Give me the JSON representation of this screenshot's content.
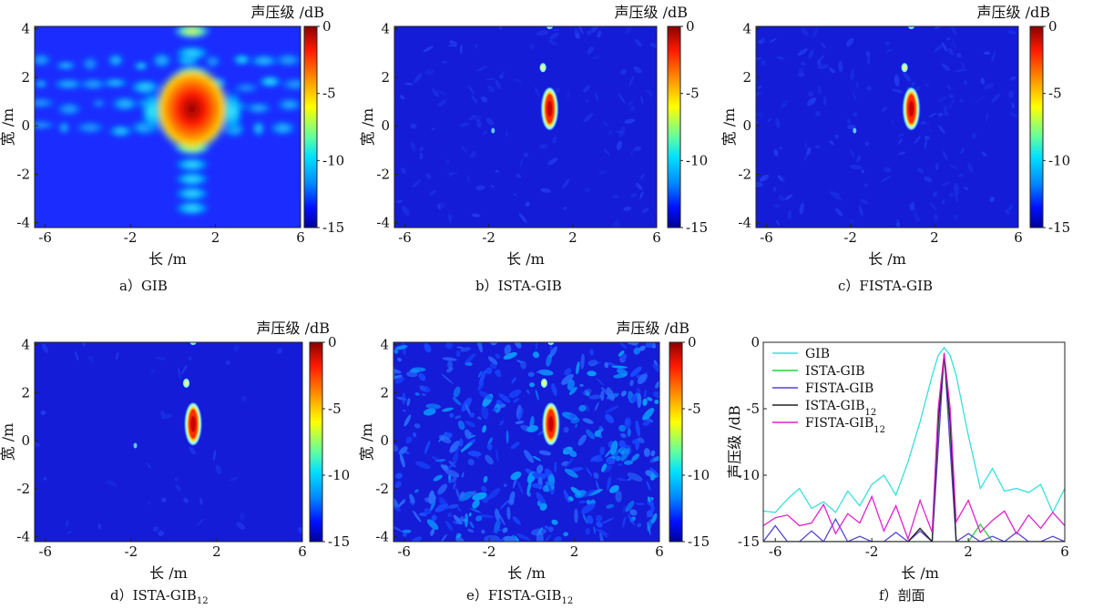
{
  "figure": {
    "colorbar_title": "声压级 /dB",
    "colorbar_ticks": [
      "0",
      "-5",
      "-10",
      "-15"
    ],
    "x_axis_label": "长 /m",
    "y_axis_label": "宽 /m",
    "x_ticks": [
      "-6",
      "-2",
      "2",
      "6"
    ],
    "y_ticks": [
      "4",
      "2",
      "0",
      "-2",
      "-4"
    ]
  },
  "panels": [
    {
      "id": "a",
      "caption_prefix": "a）",
      "caption_main": "GIB",
      "caption_sub": ""
    },
    {
      "id": "b",
      "caption_prefix": "b）",
      "caption_main": "ISTA-GIB",
      "caption_sub": ""
    },
    {
      "id": "c",
      "caption_prefix": "c）",
      "caption_main": "FISTA-GIB",
      "caption_sub": ""
    },
    {
      "id": "d",
      "caption_prefix": "d）",
      "caption_main": "ISTA-GIB",
      "caption_sub": "12"
    },
    {
      "id": "e",
      "caption_prefix": "e）",
      "caption_main": "FISTA-GIB",
      "caption_sub": "12"
    },
    {
      "id": "f",
      "caption_prefix": "f）",
      "caption_main": "剖面",
      "caption_sub": ""
    }
  ],
  "chart_data": [
    {
      "panel": "a",
      "type": "heatmap",
      "method": "GIB",
      "xlabel": "长 /m",
      "ylabel": "宽 /m",
      "xlim": [
        -6.5,
        6
      ],
      "ylim": [
        -4.2,
        4.1
      ],
      "colorbar_label": "声压级 /dB",
      "clim": [
        -15,
        0
      ],
      "peak": {
        "x": 0.9,
        "y": 0.7,
        "value": 0
      }
    },
    {
      "panel": "b",
      "type": "heatmap",
      "method": "ISTA-GIB",
      "xlabel": "长 /m",
      "ylabel": "宽 /m",
      "xlim": [
        -6.5,
        6
      ],
      "ylim": [
        -4.2,
        4.1
      ],
      "colorbar_label": "声压级 /dB",
      "clim": [
        -15,
        0
      ],
      "peak": {
        "x": 0.9,
        "y": 0.7,
        "value": 0
      }
    },
    {
      "panel": "c",
      "type": "heatmap",
      "method": "FISTA-GIB",
      "xlabel": "长 /m",
      "ylabel": "宽 /m",
      "xlim": [
        -6.5,
        6
      ],
      "ylim": [
        -4.2,
        4.1
      ],
      "colorbar_label": "声压级 /dB",
      "clim": [
        -15,
        0
      ],
      "peak": {
        "x": 0.9,
        "y": 0.7,
        "value": 0
      }
    },
    {
      "panel": "d",
      "type": "heatmap",
      "method": "ISTA-GIB12",
      "xlabel": "长 /m",
      "ylabel": "宽 /m",
      "xlim": [
        -6.5,
        6
      ],
      "ylim": [
        -4.2,
        4.1
      ],
      "colorbar_label": "声压级 /dB",
      "clim": [
        -15,
        0
      ],
      "peak": {
        "x": 0.9,
        "y": 0.7,
        "value": 0
      }
    },
    {
      "panel": "e",
      "type": "heatmap",
      "method": "FISTA-GIB12",
      "xlabel": "长 /m",
      "ylabel": "宽 /m",
      "xlim": [
        -6.5,
        6
      ],
      "ylim": [
        -4.2,
        4.1
      ],
      "colorbar_label": "声压级 /dB",
      "clim": [
        -15,
        0
      ],
      "peak": {
        "x": 0.9,
        "y": 0.7,
        "value": 0
      }
    },
    {
      "panel": "f",
      "type": "line",
      "title": "剖面",
      "xlabel": "长 /m",
      "ylabel": "声压级 /dB",
      "xlim": [
        -6.5,
        6
      ],
      "ylim": [
        -15,
        0
      ],
      "xticks": [
        -6,
        -2,
        2,
        6
      ],
      "yticks": [
        0,
        -5,
        -10,
        -15
      ],
      "legend": "top-left",
      "x": [
        -6.5,
        -6,
        -5.5,
        -5,
        -4.5,
        -4,
        -3.5,
        -3,
        -2.5,
        -2,
        -1.5,
        -1,
        -0.5,
        0,
        0.5,
        0.75,
        1,
        1.25,
        1.5,
        2,
        2.5,
        3,
        3.5,
        4,
        4.5,
        5,
        5.5,
        6
      ],
      "series": [
        {
          "name": "GIB",
          "name_main": "GIB",
          "name_sub": "",
          "color": "#35e0dd",
          "values": [
            -12.7,
            -12.8,
            -11.8,
            -11,
            -12.5,
            -12,
            -12.8,
            -11.2,
            -12.3,
            -10.7,
            -10,
            -11.5,
            -9,
            -6,
            -2.5,
            -1,
            -0.4,
            -1,
            -2.5,
            -7,
            -11,
            -9.5,
            -11.2,
            -11,
            -11.3,
            -10.7,
            -12.8,
            -11
          ]
        },
        {
          "name": "ISTA-GIB",
          "name_main": "ISTA-GIB",
          "name_sub": "",
          "color": "#2ecc40",
          "values": [
            -15,
            -15,
            -15,
            -15,
            -15,
            -15,
            -15,
            -15,
            -15,
            -15,
            -15,
            -15,
            -15,
            -15,
            -15,
            -7,
            -1,
            -7,
            -15,
            -15,
            -13.7,
            -15,
            -15,
            -15,
            -15,
            -15,
            -15,
            -15
          ]
        },
        {
          "name": "FISTA-GIB",
          "name_main": "FISTA-GIB",
          "name_sub": "",
          "color": "#5544d0",
          "values": [
            -15,
            -13.8,
            -15,
            -15,
            -14.2,
            -15,
            -13.3,
            -15,
            -14.6,
            -15,
            -15,
            -14.3,
            -15,
            -14.2,
            -15,
            -8,
            -0.8,
            -8,
            -15,
            -14.4,
            -15,
            -14.6,
            -15,
            -14.3,
            -15,
            -15,
            -14.6,
            -15
          ]
        },
        {
          "name": "ISTA-GIB12",
          "name_main": "ISTA-GIB",
          "name_sub": "12",
          "color": "#222222",
          "values": [
            -15,
            -15,
            -15,
            -15,
            -15,
            -15,
            -15,
            -15,
            -15,
            -15,
            -15,
            -15,
            -15,
            -14,
            -15,
            -6,
            -1,
            -6,
            -15,
            -15,
            -15,
            -15,
            -15,
            -15,
            -15,
            -15,
            -15,
            -15
          ]
        },
        {
          "name": "FISTA-GIB12",
          "name_main": "FISTA-GIB",
          "name_sub": "12",
          "color": "#dd22cc",
          "values": [
            -13.8,
            -13.2,
            -13,
            -13.8,
            -13.6,
            -12.2,
            -14.4,
            -12.9,
            -13.6,
            -11.6,
            -14.2,
            -12.3,
            -14.8,
            -11.9,
            -14.3,
            -5,
            -0.8,
            -5,
            -13.5,
            -11.9,
            -14.3,
            -13.4,
            -12.7,
            -14.4,
            -13,
            -14,
            -12.8,
            -13.8
          ]
        }
      ]
    }
  ]
}
